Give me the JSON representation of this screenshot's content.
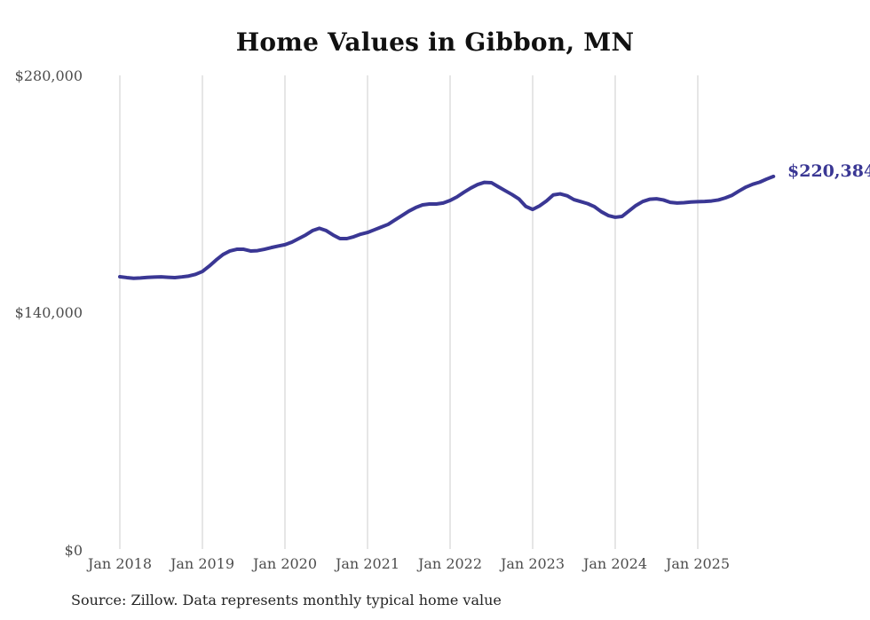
{
  "page": {
    "background_color": "#ffffff"
  },
  "chart_data": {
    "type": "line",
    "title": "Home Values in Gibbon, MN",
    "xlabel": "",
    "ylabel": "",
    "x_interval": "monthly",
    "x_start": "Jan 2018",
    "x_end": "Dec 2025",
    "x_tick_labels": [
      "Jan 2018",
      "Jan 2019",
      "Jan 2020",
      "Jan 2021",
      "Jan 2022",
      "Jan 2023",
      "Jan 2024",
      "Jan 2025"
    ],
    "y_tick_labels": [
      "$280,000",
      "$140,000",
      "$0"
    ],
    "ylim": [
      0,
      280000
    ],
    "grid": "vertical-only",
    "legend": "none",
    "line_color": "#3a3794",
    "gridline_color": "#cccccc",
    "end_label": "$220,384",
    "latest_value": 220384,
    "series": [
      {
        "name": "Monthly typical home value",
        "values": [
          161200,
          160700,
          160300,
          160500,
          160800,
          161000,
          161100,
          160900,
          160700,
          161100,
          161600,
          162600,
          164300,
          167500,
          171100,
          174300,
          176400,
          177400,
          177400,
          176400,
          176600,
          177400,
          178400,
          179300,
          180100,
          181600,
          183700,
          185800,
          188400,
          189800,
          188400,
          185800,
          183700,
          183700,
          184800,
          186300,
          187300,
          188900,
          190500,
          192100,
          194700,
          197300,
          199900,
          202000,
          203600,
          204100,
          204100,
          204700,
          206200,
          208300,
          211000,
          213500,
          215600,
          216900,
          216700,
          214300,
          212000,
          209700,
          207100,
          202700,
          200900,
          203000,
          205900,
          209500,
          210100,
          209000,
          206700,
          205500,
          204300,
          202500,
          199500,
          197300,
          196300,
          196800,
          200000,
          203200,
          205600,
          206900,
          207200,
          206500,
          205100,
          204700,
          204900,
          205300,
          205500,
          205600,
          205900,
          206500,
          207700,
          209300,
          211800,
          214100,
          215800,
          217000,
          218800,
          220384
        ]
      }
    ],
    "source_note": "Source: Zillow. Data represents monthly typical home value"
  }
}
